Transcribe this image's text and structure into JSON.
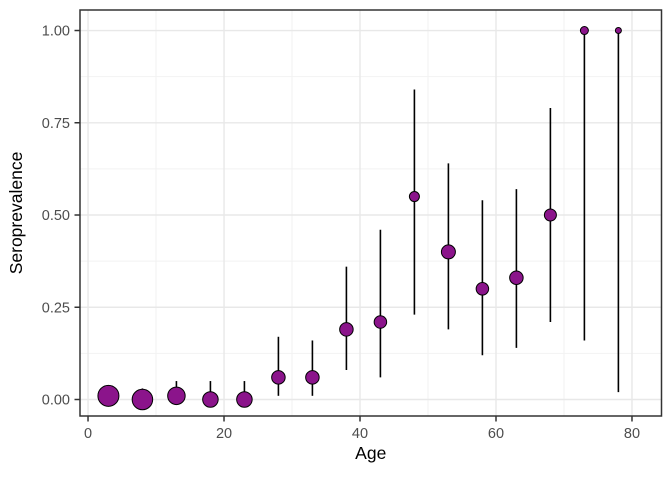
{
  "chart_data": {
    "type": "scatter",
    "title": "",
    "xlabel": "Age",
    "ylabel": "Seroprevalence",
    "x_ticks": [
      0,
      20,
      40,
      60,
      80
    ],
    "x_tick_labels": [
      "0",
      "20",
      "40",
      "60",
      "80"
    ],
    "y_ticks": [
      0.0,
      0.25,
      0.5,
      0.75,
      1.0
    ],
    "y_tick_labels": [
      "0.00",
      "0.25",
      "0.50",
      "0.75",
      "1.00"
    ],
    "x_minor": [
      10,
      30,
      50,
      70
    ],
    "y_minor": [
      0.125,
      0.375,
      0.625,
      0.875
    ],
    "xlim": [
      -1.18,
      84.34
    ],
    "ylim": [
      -0.0447,
      1.0556
    ],
    "grid": "major+minor",
    "legend": "none",
    "series": [
      {
        "name": "seroprevalence-by-age",
        "points": [
          {
            "age": 3,
            "value": 0.01,
            "ci_low": 0.0,
            "ci_high": 0.03,
            "diameter": 21
          },
          {
            "age": 8,
            "value": 0.0,
            "ci_low": 0.0,
            "ci_high": 0.03,
            "diameter": 20.5
          },
          {
            "age": 13,
            "value": 0.01,
            "ci_low": 0.0,
            "ci_high": 0.05,
            "diameter": 17.5
          },
          {
            "age": 18,
            "value": 0.0,
            "ci_low": 0.0,
            "ci_high": 0.05,
            "diameter": 15.5
          },
          {
            "age": 23,
            "value": 0.0,
            "ci_low": 0.0,
            "ci_high": 0.05,
            "diameter": 15.5
          },
          {
            "age": 28,
            "value": 0.06,
            "ci_low": 0.01,
            "ci_high": 0.17,
            "diameter": 13.5
          },
          {
            "age": 33,
            "value": 0.06,
            "ci_low": 0.01,
            "ci_high": 0.16,
            "diameter": 13.5
          },
          {
            "age": 38,
            "value": 0.19,
            "ci_low": 0.08,
            "ci_high": 0.36,
            "diameter": 13.5
          },
          {
            "age": 43,
            "value": 0.21,
            "ci_low": 0.06,
            "ci_high": 0.46,
            "diameter": 12.5
          },
          {
            "age": 48,
            "value": 0.55,
            "ci_low": 0.23,
            "ci_high": 0.84,
            "diameter": 10
          },
          {
            "age": 53,
            "value": 0.4,
            "ci_low": 0.19,
            "ci_high": 0.64,
            "diameter": 14
          },
          {
            "age": 58,
            "value": 0.3,
            "ci_low": 0.12,
            "ci_high": 0.54,
            "diameter": 12.5
          },
          {
            "age": 63,
            "value": 0.33,
            "ci_low": 0.14,
            "ci_high": 0.57,
            "diameter": 13.5
          },
          {
            "age": 68,
            "value": 0.5,
            "ci_low": 0.21,
            "ci_high": 0.79,
            "diameter": 12
          },
          {
            "age": 73,
            "value": 1.0,
            "ci_low": 0.16,
            "ci_high": 1.0,
            "diameter": 8
          },
          {
            "age": 78,
            "value": 1.0,
            "ci_low": 0.02,
            "ci_high": 1.0,
            "diameter": 6
          }
        ]
      }
    ]
  },
  "style": {
    "point_fill": "#8B148B",
    "point_stroke": "#000000",
    "errorbar_color": "#000000",
    "grid_major_color": "#E8E8E8",
    "grid_minor_color": "#F2F2F2",
    "panel_border_color": "#333333",
    "panel_background": "#FFFFFF",
    "tick_color": "#333333",
    "tick_label_color": "#4D4D4D",
    "axis_title_color": "#000000"
  }
}
